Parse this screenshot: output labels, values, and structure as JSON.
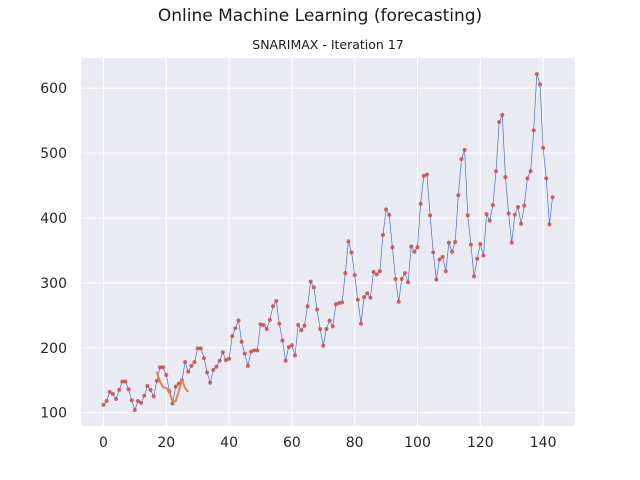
{
  "suptitle": "Online Machine Learning (forecasting)",
  "chart_data": {
    "type": "line",
    "title": "SNARIMAX - Iteration 17",
    "xlabel": "",
    "ylabel": "",
    "xlim": [
      -7.15,
      150.15
    ],
    "ylim": [
      79.4,
      646.6
    ],
    "xticks": [
      0,
      20,
      40,
      60,
      80,
      100,
      120,
      140
    ],
    "yticks": [
      100,
      200,
      300,
      400,
      500,
      600
    ],
    "grid": true,
    "colors": {
      "background": "#eaeaf2",
      "grid": "#ffffff",
      "observed_line": "#4c72b0",
      "observed_markers": "#c44e52",
      "forecast": "#dd8452"
    },
    "series": [
      {
        "role": "observed",
        "x": [
          0,
          1,
          2,
          3,
          4,
          5,
          6,
          7,
          8,
          9,
          10,
          11,
          12,
          13,
          14,
          15,
          16,
          17,
          18,
          19,
          20,
          21,
          22,
          23,
          24,
          25,
          26,
          27,
          28,
          29,
          30,
          31,
          32,
          33,
          34,
          35,
          36,
          37,
          38,
          39,
          40,
          41,
          42,
          43,
          44,
          45,
          46,
          47,
          48,
          49,
          50,
          51,
          52,
          53,
          54,
          55,
          56,
          57,
          58,
          59,
          60,
          61,
          62,
          63,
          64,
          65,
          66,
          67,
          68,
          69,
          70,
          71,
          72,
          73,
          74,
          75,
          76,
          77,
          78,
          79,
          80,
          81,
          82,
          83,
          84,
          85,
          86,
          87,
          88,
          89,
          90,
          91,
          92,
          93,
          94,
          95,
          96,
          97,
          98,
          99,
          100,
          101,
          102,
          103,
          104,
          105,
          106,
          107,
          108,
          109,
          110,
          111,
          112,
          113,
          114,
          115,
          116,
          117,
          118,
          119,
          120,
          121,
          122,
          123,
          124,
          125,
          126,
          127,
          128,
          129,
          130,
          131,
          132,
          133,
          134,
          135,
          136,
          137,
          138,
          139,
          140,
          141,
          142,
          143
        ],
        "y": [
          112,
          118,
          132,
          129,
          121,
          135,
          148,
          148,
          136,
          119,
          104,
          118,
          115,
          126,
          141,
          135,
          125,
          149,
          170,
          170,
          158,
          133,
          114,
          140,
          145,
          150,
          178,
          163,
          172,
          178,
          199,
          199,
          184,
          162,
          146,
          166,
          171,
          180,
          193,
          181,
          183,
          218,
          230,
          242,
          209,
          191,
          172,
          194,
          196,
          196,
          236,
          235,
          229,
          243,
          264,
          272,
          237,
          211,
          180,
          201,
          204,
          188,
          235,
          227,
          234,
          264,
          302,
          293,
          259,
          229,
          203,
          229,
          242,
          233,
          267,
          269,
          270,
          315,
          364,
          347,
          312,
          274,
          237,
          278,
          284,
          277,
          317,
          313,
          318,
          374,
          413,
          405,
          355,
          306,
          271,
          306,
          315,
          301,
          356,
          348,
          355,
          422,
          465,
          467,
          404,
          347,
          305,
          336,
          340,
          318,
          362,
          348,
          363,
          435,
          491,
          505,
          404,
          359,
          310,
          337,
          360,
          342,
          406,
          396,
          420,
          472,
          548,
          559,
          463,
          407,
          362,
          405,
          417,
          391,
          419,
          461,
          472,
          535,
          622,
          606,
          508,
          461,
          390,
          432
        ]
      },
      {
        "role": "forecast",
        "x": [
          17,
          18,
          19,
          20,
          21,
          22,
          23,
          24,
          25,
          26,
          27
        ],
        "y": [
          163,
          148,
          139,
          138,
          132,
          117,
          118,
          133,
          150,
          138,
          132
        ]
      }
    ]
  }
}
